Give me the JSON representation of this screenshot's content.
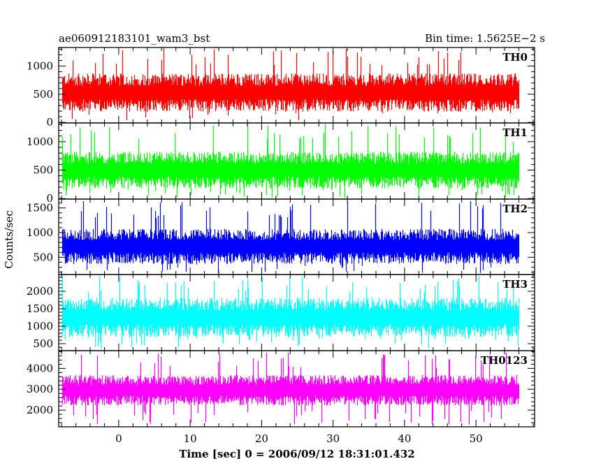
{
  "header": {
    "left_title": "ae060912183101_wam3_bst",
    "right_title": "Bin time: 1.5625E−2 s"
  },
  "chart_data": {
    "type": "line",
    "ylabel": "Counts/sec",
    "xlabel": "Time [sec] 0 = 2006/09/12 18:31:01.432",
    "xlim": [
      -8.4,
      58.2
    ],
    "x_data_range": [
      -8.0,
      56.0
    ],
    "x_ticks": [
      0,
      10,
      20,
      30,
      40,
      50
    ],
    "x_tick_labels": [
      "0",
      "10",
      "20",
      "30",
      "40",
      "50"
    ],
    "bin_time_s": 0.015625,
    "panels": [
      {
        "name": "TH0",
        "color": "#ff0000",
        "ylim": [
          -10,
          1330
        ],
        "yticks": [
          0,
          500,
          1000
        ],
        "ytick_labels": [
          "0",
          "500",
          "1000"
        ],
        "baseline": 530,
        "spread": 200,
        "low_floor": 10,
        "peak": 1330
      },
      {
        "name": "TH1",
        "color": "#00ff00",
        "ylim": [
          -10,
          1330
        ],
        "yticks": [
          0,
          500,
          1000
        ],
        "ytick_labels": [
          "0",
          "500",
          "1000"
        ],
        "baseline": 500,
        "spread": 190,
        "low_floor": 10,
        "peak": 1320
      },
      {
        "name": "TH2",
        "color": "#0000ff",
        "ylim": [
          150,
          1680
        ],
        "yticks": [
          500,
          1000,
          1500
        ],
        "ytick_labels": [
          "500",
          "1000",
          "1500"
        ],
        "baseline": 720,
        "spread": 210,
        "low_floor": 180,
        "peak": 1640
      },
      {
        "name": "TH3",
        "color": "#00ffff",
        "ylim": [
          300,
          2480
        ],
        "yticks": [
          500,
          1000,
          1500,
          2000
        ],
        "ytick_labels": [
          "500",
          "1000",
          "1500",
          "2000"
        ],
        "baseline": 1250,
        "spread": 330,
        "low_floor": 360,
        "peak": 2450
      },
      {
        "name": "TH0123",
        "color": "#ff00ff",
        "ylim": [
          1200,
          4850
        ],
        "yticks": [
          2000,
          3000,
          4000
        ],
        "ytick_labels": [
          "2000",
          "3000",
          "4000"
        ],
        "baseline": 2950,
        "spread": 430,
        "low_floor": 1300,
        "peak": 4750
      }
    ]
  }
}
